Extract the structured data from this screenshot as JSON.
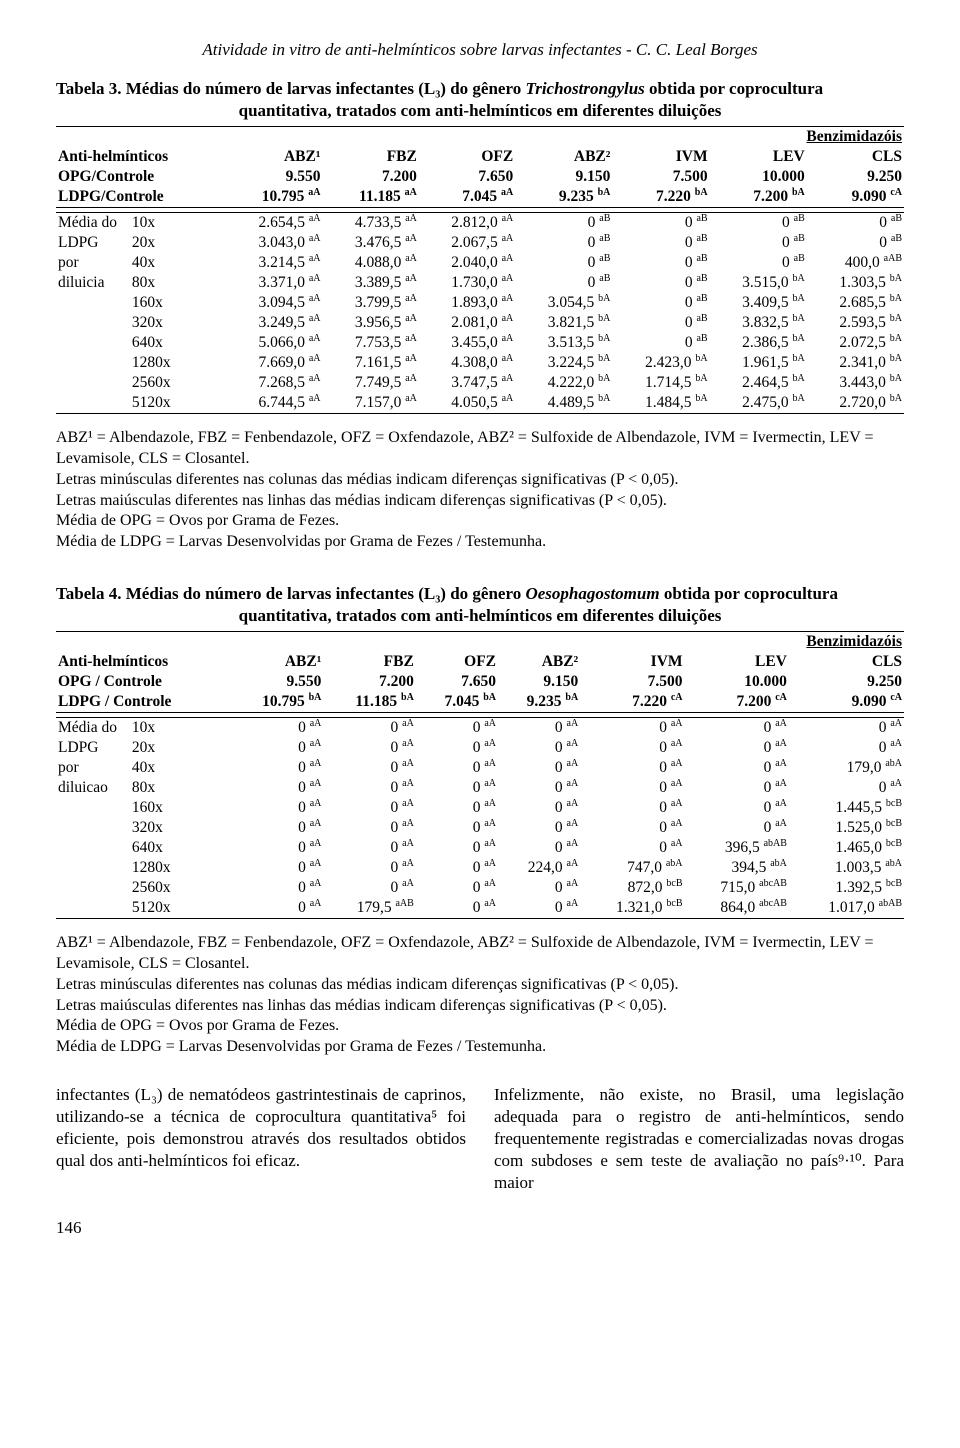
{
  "colors": {
    "text": "#000000",
    "background": "#ffffff",
    "rule": "#000000"
  },
  "typography": {
    "body_family": "Times New Roman",
    "body_size_pt": 12,
    "caption_size_pt": 12,
    "table_size_pt": 11,
    "footnote_size_pt": 12
  },
  "running_header": "Atividade in vitro de anti-helmínticos sobre larvas infectantes - C. C. Leal Borges",
  "table3": {
    "type": "table",
    "caption_bold": "Tabela 3. Médias  do número de larvas infectantes (L₃) do gênero ",
    "caption_genus": "Trichostrongylus",
    "caption_tail": " obtida por coprocultura",
    "caption_line2": "quantitativa, tratados com anti-helmínticos em diferentes diluições",
    "benz_header": "Benzimidazóis",
    "col_labels": [
      "Anti-helmínticos",
      "ABZ¹",
      "FBZ",
      "OFZ",
      "ABZ²",
      "IVM",
      "LEV",
      "CLS"
    ],
    "opg_label": "OPG/Controle",
    "opg_values": [
      "9.550",
      "7.200",
      "7.650",
      "9.150",
      "7.500",
      "10.000",
      "9.250"
    ],
    "ldpg_label": "LDPG/Controle",
    "ldpg_values": [
      "10.795",
      "11.185",
      "7.045",
      "9.235",
      "7.220",
      "7.200",
      "9.090"
    ],
    "ldpg_sup": [
      "aA",
      "aA",
      "aA",
      "bA",
      "bA",
      "bA",
      "cA"
    ],
    "row_labels_left": [
      "Média do",
      "LDPG",
      "por",
      "diluicia",
      "",
      "",
      "",
      "",
      "",
      ""
    ],
    "dilutions": [
      "10x",
      "20x",
      "40x",
      "80x",
      "160x",
      "320x",
      "640x",
      "1280x",
      "2560x",
      "5120x"
    ],
    "body": [
      [
        [
          "2.654,5",
          "aA"
        ],
        [
          "4.733,5",
          "aA"
        ],
        [
          "2.812,0",
          "aA"
        ],
        [
          "0",
          "aB"
        ],
        [
          "0",
          "aB"
        ],
        [
          "0",
          "aB"
        ],
        [
          "0",
          "aB"
        ]
      ],
      [
        [
          "3.043,0",
          "aA"
        ],
        [
          "3.476,5",
          "aA"
        ],
        [
          "2.067,5",
          "aA"
        ],
        [
          "0",
          "aB"
        ],
        [
          "0",
          "aB"
        ],
        [
          "0",
          "aB"
        ],
        [
          "0",
          "aB"
        ]
      ],
      [
        [
          "3.214,5",
          "aA"
        ],
        [
          "4.088,0",
          "aA"
        ],
        [
          "2.040,0",
          "aA"
        ],
        [
          "0",
          "aB"
        ],
        [
          "0",
          "aB"
        ],
        [
          "0",
          "aB"
        ],
        [
          "400,0",
          "aAB"
        ]
      ],
      [
        [
          "3.371,0",
          "aA"
        ],
        [
          "3.389,5",
          "aA"
        ],
        [
          "1.730,0",
          "aA"
        ],
        [
          "0",
          "aB"
        ],
        [
          "0",
          "aB"
        ],
        [
          "3.515,0",
          "bA"
        ],
        [
          "1.303,5",
          "bA"
        ]
      ],
      [
        [
          "3.094,5",
          "aA"
        ],
        [
          "3.799,5",
          "aA"
        ],
        [
          "1.893,0",
          "aA"
        ],
        [
          "3.054,5",
          "bA"
        ],
        [
          "0",
          "aB"
        ],
        [
          "3.409,5",
          "bA"
        ],
        [
          "2.685,5",
          "bA"
        ]
      ],
      [
        [
          "3.249,5",
          "aA"
        ],
        [
          "3.956,5",
          "aA"
        ],
        [
          "2.081,0",
          "aA"
        ],
        [
          "3.821,5",
          "bA"
        ],
        [
          "0",
          "aB"
        ],
        [
          "3.832,5",
          "bA"
        ],
        [
          "2.593,5",
          "bA"
        ]
      ],
      [
        [
          "5.066,0",
          "aA"
        ],
        [
          "7.753,5",
          "aA"
        ],
        [
          "3.455,0",
          "aA"
        ],
        [
          "3.513,5",
          "bA"
        ],
        [
          "0",
          "aB"
        ],
        [
          "2.386,5",
          "bA"
        ],
        [
          "2.072,5",
          "bA"
        ]
      ],
      [
        [
          "7.669,0",
          "aA"
        ],
        [
          "7.161,5",
          "aA"
        ],
        [
          "4.308,0",
          "aA"
        ],
        [
          "3.224,5",
          "bA"
        ],
        [
          "2.423,0",
          "bA"
        ],
        [
          "1.961,5",
          "bA"
        ],
        [
          "2.341,0",
          "bA"
        ]
      ],
      [
        [
          "7.268,5",
          "aA"
        ],
        [
          "7.749,5",
          "aA"
        ],
        [
          "3.747,5",
          "aA"
        ],
        [
          "4.222,0",
          "bA"
        ],
        [
          "1.714,5",
          "bA"
        ],
        [
          "2.464,5",
          "bA"
        ],
        [
          "3.443,0",
          "bA"
        ]
      ],
      [
        [
          "6.744,5",
          "aA"
        ],
        [
          "7.157,0",
          "aA"
        ],
        [
          "4.050,5",
          "aA"
        ],
        [
          "4.489,5",
          "bA"
        ],
        [
          "1.484,5",
          "bA"
        ],
        [
          "2.475,0",
          "bA"
        ],
        [
          "2.720,0",
          "bA"
        ]
      ]
    ]
  },
  "footnotes_common": {
    "abbr": "ABZ¹ = Albendazole, FBZ = Fenbendazole, OFZ = Oxfendazole, ABZ² = Sulfoxide de Albendazole, IVM = Ivermectin, LEV = Levamisole, CLS = Closantel.",
    "min": "Letras minúsculas diferentes nas colunas das médias indicam diferenças significativas (P < 0,05).",
    "mai": "Letras maiúsculas diferentes nas linhas das médias indicam diferenças significativas (P < 0,05).",
    "opg": "Média de OPG = Ovos por Grama de Fezes.",
    "ldpg": "Média de LDPG = Larvas Desenvolvidas por Grama de Fezes / Testemunha."
  },
  "table4": {
    "type": "table",
    "caption_bold": "Tabela 4. Médias do número de larvas infectantes (L₃) do gênero ",
    "caption_genus": "Oesophagostomum",
    "caption_tail": " obtida por coprocultura",
    "caption_line2": "quantitativa, tratados com anti-helmínticos em diferentes diluições",
    "benz_header": "Benzimidazóis",
    "col_labels": [
      "Anti-helmínticos",
      "ABZ¹",
      "FBZ",
      "OFZ",
      "ABZ²",
      "IVM",
      "LEV",
      "CLS"
    ],
    "opg_label": "OPG / Controle",
    "opg_values": [
      "9.550",
      "7.200",
      "7.650",
      "9.150",
      "7.500",
      "10.000",
      "9.250"
    ],
    "ldpg_label": "LDPG / Controle",
    "ldpg_values": [
      "10.795",
      "11.185",
      "7.045",
      "9.235",
      "7.220",
      "7.200",
      "9.090"
    ],
    "ldpg_sup": [
      "bA",
      "bA",
      "bA",
      "bA",
      "cA",
      "cA",
      "cA"
    ],
    "row_labels_left": [
      "Média do",
      "LDPG",
      "por",
      "diluicao",
      "",
      "",
      "",
      "",
      "",
      ""
    ],
    "dilutions": [
      "10x",
      "20x",
      "40x",
      "80x",
      "160x",
      "320x",
      "640x",
      "1280x",
      "2560x",
      "5120x"
    ],
    "body": [
      [
        [
          "0",
          "aA"
        ],
        [
          "0",
          "aA"
        ],
        [
          "0",
          "aA"
        ],
        [
          "0",
          "aA"
        ],
        [
          "0",
          "aA"
        ],
        [
          "0",
          "aA"
        ],
        [
          "0",
          "aA"
        ]
      ],
      [
        [
          "0",
          "aA"
        ],
        [
          "0",
          "aA"
        ],
        [
          "0",
          "aA"
        ],
        [
          "0",
          "aA"
        ],
        [
          "0",
          "aA"
        ],
        [
          "0",
          "aA"
        ],
        [
          "0",
          "aA"
        ]
      ],
      [
        [
          "0",
          "aA"
        ],
        [
          "0",
          "aA"
        ],
        [
          "0",
          "aA"
        ],
        [
          "0",
          "aA"
        ],
        [
          "0",
          "aA"
        ],
        [
          "0",
          "aA"
        ],
        [
          "179,0",
          "abA"
        ]
      ],
      [
        [
          "0",
          "aA"
        ],
        [
          "0",
          "aA"
        ],
        [
          "0",
          "aA"
        ],
        [
          "0",
          "aA"
        ],
        [
          "0",
          "aA"
        ],
        [
          "0",
          "aA"
        ],
        [
          "0",
          "aA"
        ]
      ],
      [
        [
          "0",
          "aA"
        ],
        [
          "0",
          "aA"
        ],
        [
          "0",
          "aA"
        ],
        [
          "0",
          "aA"
        ],
        [
          "0",
          "aA"
        ],
        [
          "0",
          "aA"
        ],
        [
          "1.445,5",
          "bcB"
        ]
      ],
      [
        [
          "0",
          "aA"
        ],
        [
          "0",
          "aA"
        ],
        [
          "0",
          "aA"
        ],
        [
          "0",
          "aA"
        ],
        [
          "0",
          "aA"
        ],
        [
          "0",
          "aA"
        ],
        [
          "1.525,0",
          "bcB"
        ]
      ],
      [
        [
          "0",
          "aA"
        ],
        [
          "0",
          "aA"
        ],
        [
          "0",
          "aA"
        ],
        [
          "0",
          "aA"
        ],
        [
          "0",
          "aA"
        ],
        [
          "396,5",
          "abAB"
        ],
        [
          "1.465,0",
          "bcB"
        ]
      ],
      [
        [
          "0",
          "aA"
        ],
        [
          "0",
          "aA"
        ],
        [
          "0",
          "aA"
        ],
        [
          "224,0",
          "aA"
        ],
        [
          "747,0",
          "abA"
        ],
        [
          "394,5",
          "abA"
        ],
        [
          "1.003,5",
          "abA"
        ]
      ],
      [
        [
          "0",
          "aA"
        ],
        [
          "0",
          "aA"
        ],
        [
          "0",
          "aA"
        ],
        [
          "0",
          "aA"
        ],
        [
          "872,0",
          "bcB"
        ],
        [
          "715,0",
          "abcAB"
        ],
        [
          "1.392,5",
          "bcB"
        ]
      ],
      [
        [
          "0",
          "aA"
        ],
        [
          "179,5",
          "aAB"
        ],
        [
          "0",
          "aA"
        ],
        [
          "0",
          "aA"
        ],
        [
          "1.321,0",
          "bcB"
        ],
        [
          "864,0",
          "abcAB"
        ],
        [
          "1.017,0",
          "abAB"
        ]
      ]
    ]
  },
  "bottom_text": {
    "left": "infectantes (L₃) de nematódeos gastrintestinais de caprinos, utilizando-se a técnica de coprocultura quantitativa⁵ foi eficiente, pois demonstrou através dos resultados obtidos qual dos anti-helmínticos foi eficaz.",
    "right": "Infelizmente, não existe, no Brasil, uma legislação adequada para o registro de anti-helmínticos, sendo frequentemente registradas e comercializadas novas drogas  com subdoses e sem teste de avaliação no país⁹·¹⁰. Para maior"
  },
  "page_number": "146"
}
